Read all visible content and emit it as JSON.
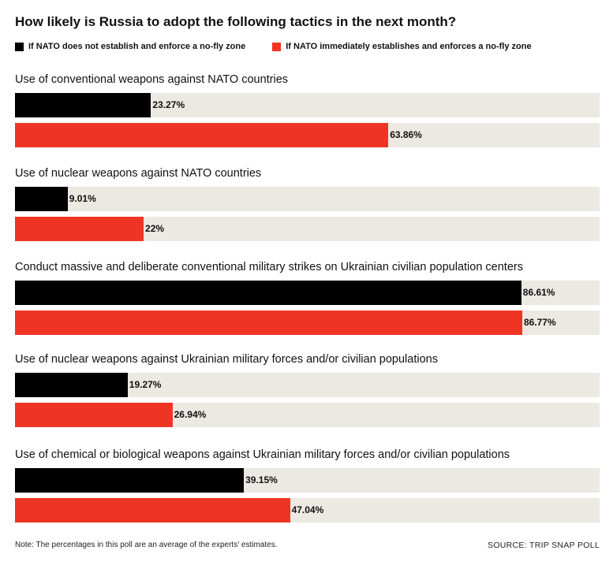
{
  "chart_data": {
    "type": "bar",
    "orientation": "horizontal",
    "title": "How likely is Russia to adopt the following tactics in the next month?",
    "categories": [
      "Use of conventional weapons against NATO countries",
      "Use of nuclear weapons against NATO countries",
      "Conduct massive and deliberate conventional military strikes on Ukrainian civilian population centers",
      "Use of nuclear weapons against Ukrainian military forces and/or civilian populations",
      "Use of chemical or biological weapons against Ukrainian military forces and/or civilian populations"
    ],
    "series": [
      {
        "name": "If NATO does not establish and enforce a no-fly zone",
        "color": "#000000",
        "values": [
          23.27,
          9.01,
          86.61,
          19.27,
          39.15
        ],
        "labels": [
          "23.27%",
          "9.01%",
          "86.61%",
          "19.27%",
          "39.15%"
        ]
      },
      {
        "name": "If NATO immediately establishes and enforces a no-fly zone",
        "color": "#ee3524",
        "values": [
          63.86,
          22,
          86.77,
          26.94,
          47.04
        ],
        "labels": [
          "63.86%",
          "22%",
          "86.77%",
          "26.94%",
          "47.04%"
        ]
      }
    ],
    "xlim": [
      0,
      100
    ],
    "track_color": "#ece8e2",
    "note": "Note: The percentages in this poll are an average of the experts' estimates.",
    "source": "SOURCE: TRIP SNAP POLL"
  }
}
